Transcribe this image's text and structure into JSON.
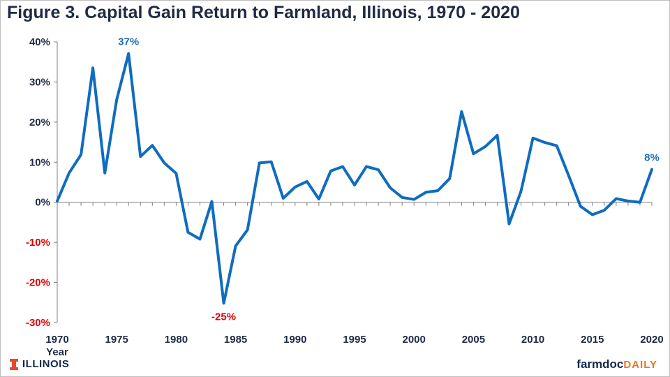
{
  "title": "Figure 3.  Capital Gain Return to Farmland, Illinois, 1970 - 2020",
  "footer": {
    "left_brand": "ILLINOIS",
    "right_brand_part1": "farmdoc",
    "right_brand_part2": "DAILY"
  },
  "colors": {
    "line": "#0f6cbf",
    "positive_label": "#1f2a44",
    "negative_label": "#e00000",
    "annotation_blue": "#1f6fb5",
    "annotation_red": "#e00000"
  },
  "chart_data": {
    "type": "line",
    "title": "Figure 3.  Capital Gain Return to Farmland, Illinois, 1970 - 2020",
    "xlabel": "Year",
    "ylabel": "",
    "xlim": [
      1970,
      2020
    ],
    "ylim": [
      -30,
      40
    ],
    "x_ticks": [
      1970,
      1975,
      1980,
      1985,
      1990,
      1995,
      2000,
      2005,
      2010,
      2015,
      2020
    ],
    "y_ticks": [
      -30,
      -20,
      -10,
      0,
      10,
      20,
      30,
      40
    ],
    "y_tick_format": "percent",
    "grid": false,
    "series": [
      {
        "x": [
          1970,
          1971,
          1972,
          1973,
          1974,
          1975,
          1976,
          1977,
          1978,
          1979,
          1980,
          1981,
          1982,
          1983,
          1984,
          1985,
          1986,
          1987,
          1988,
          1989,
          1990,
          1991,
          1992,
          1993,
          1994,
          1995,
          1996,
          1997,
          1998,
          1999,
          2000,
          2001,
          2002,
          2003,
          2004,
          2005,
          2006,
          2007,
          2008,
          2009,
          2010,
          2011,
          2012,
          2013,
          2014,
          2015,
          2016,
          2017,
          2018,
          2019,
          2020
        ],
        "values": [
          0.3,
          7.3,
          11.9,
          33.5,
          7.3,
          25.6,
          37.1,
          11.4,
          14.2,
          9.8,
          7.2,
          -7.5,
          -9.2,
          0.2,
          -25.2,
          -10.9,
          -6.9,
          9.8,
          10.1,
          1.0,
          3.8,
          5.2,
          0.8,
          7.8,
          8.9,
          4.3,
          8.9,
          8.1,
          3.6,
          1.2,
          0.7,
          2.5,
          2.9,
          5.9,
          22.6,
          12.1,
          13.9,
          16.7,
          -5.4,
          2.8,
          16.0,
          14.9,
          14.1,
          6.7,
          -1.0,
          -3.1,
          -2.0,
          0.9,
          0.3,
          0.0,
          8.2
        ]
      }
    ],
    "annotations": [
      {
        "text": "37%",
        "x": 1976,
        "y": 37.1,
        "color": "blue",
        "position": "above"
      },
      {
        "text": "-25%",
        "x": 1984,
        "y": -25.2,
        "color": "red",
        "position": "below"
      },
      {
        "text": "8%",
        "x": 2020,
        "y": 8.2,
        "color": "blue",
        "position": "above"
      }
    ]
  }
}
